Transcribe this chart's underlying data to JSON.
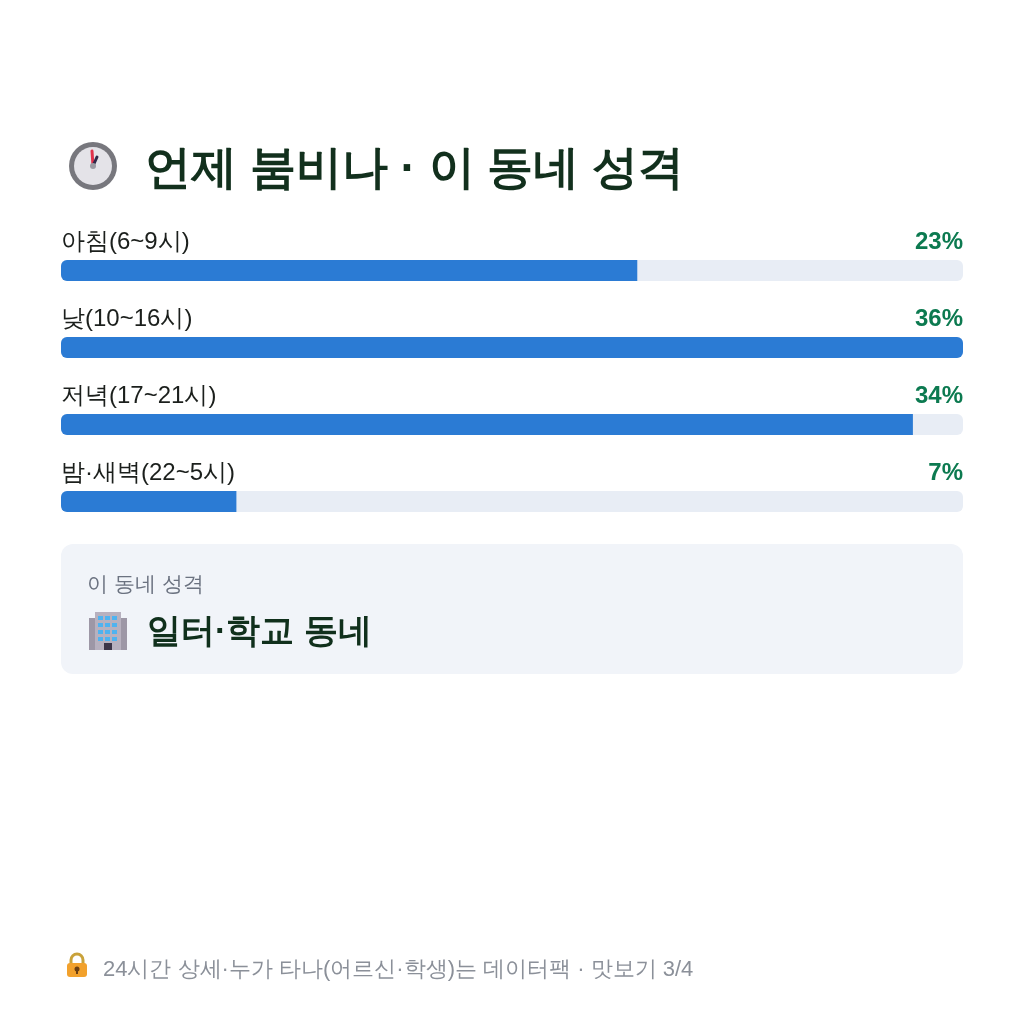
{
  "chart_data": [
    {
      "type": "bar",
      "orientation": "horizontal",
      "title": "언제 붐비나 · 이 동네 성격",
      "categories": [
        "아침(6~9시)",
        "낮(10~16시)",
        "저녁(17~21시)",
        "밤·새벽(22~5시)"
      ],
      "values": [
        23,
        36,
        34,
        7
      ],
      "value_labels": [
        "23%",
        "36%",
        "34%",
        "7%"
      ],
      "color": "#2b7bd4",
      "annotations": [
        "24시간 상세·누가 타나(어르신·학생)는 데이터팩 · 맛보기 3/4"
      ]
    },
    {
      "type": "other",
      "title": "이 동네 성격",
      "annotations": [
        "일터·학교 동네"
      ]
    }
  ]
}
